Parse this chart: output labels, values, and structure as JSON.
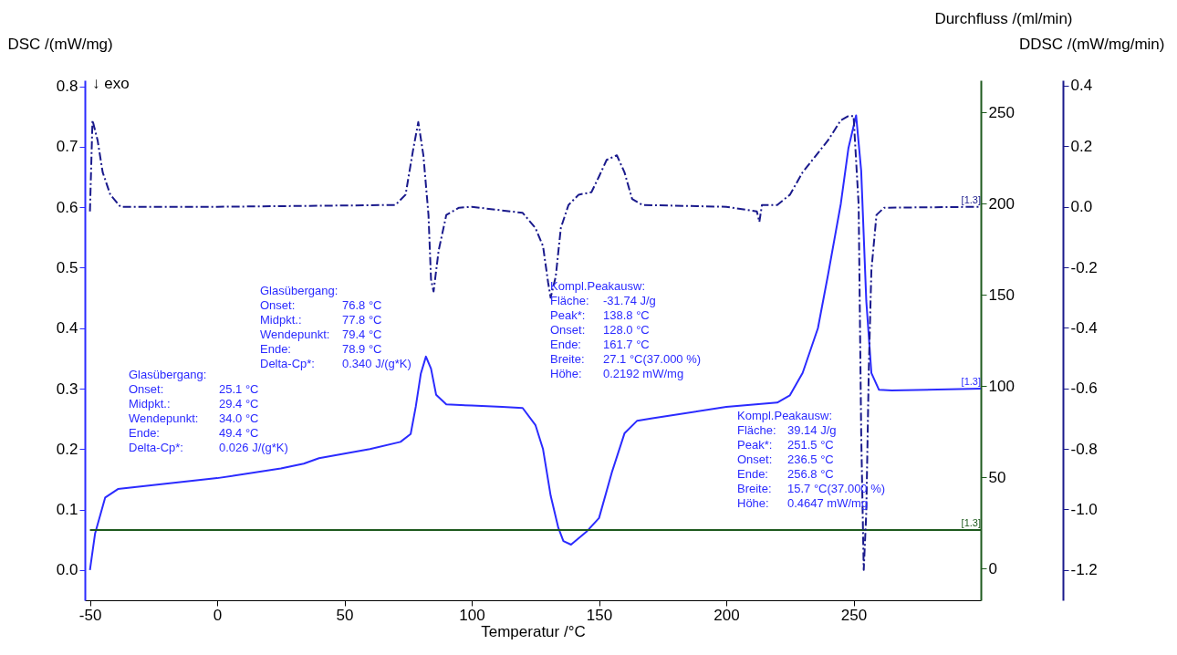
{
  "chart_data": {
    "type": "line",
    "xlabel": "Temperatur /°C",
    "ylabel": "DSC /(mW/mg)",
    "y2label": "Durchfluss /(ml/min)",
    "y3label": "DDSC /(mW/mg/min)",
    "xlim": [
      -52,
      300
    ],
    "xticks": [
      -50,
      0,
      50,
      100,
      150,
      200,
      250
    ],
    "ylim": [
      -0.05,
      0.81
    ],
    "yticks": [
      {
        "value": 0,
        "label": "0.0"
      },
      {
        "value": 0.1,
        "label": "0.1"
      },
      {
        "value": 0.2,
        "label": "0.2"
      },
      {
        "value": 0.3,
        "label": "0.3"
      },
      {
        "value": 0.4,
        "label": "0.4"
      },
      {
        "value": 0.5,
        "label": "0.5"
      },
      {
        "value": 0.6,
        "label": "0.6"
      },
      {
        "value": 0.7,
        "label": "0.7"
      },
      {
        "value": 0.8,
        "label": "0.8"
      }
    ],
    "y2lim": [
      -17.5,
      267.5
    ],
    "y2ticks": [
      0,
      50,
      100,
      150,
      200,
      250
    ],
    "y3lim": [
      -1.3,
      0.418
    ],
    "y3ticks": [
      {
        "value": -1.2,
        "label": "-1.2"
      },
      {
        "value": -1,
        "label": "-1.0"
      },
      {
        "value": -0.8,
        "label": "-0.8"
      },
      {
        "value": -0.6,
        "label": "-0.6"
      },
      {
        "value": -0.4,
        "label": "-0.4"
      },
      {
        "value": -0.2,
        "label": "-0.2"
      },
      {
        "value": 0,
        "label": "0.0"
      },
      {
        "value": 0.2,
        "label": "0.2"
      },
      {
        "value": 0.4,
        "label": "0.4"
      }
    ],
    "series": [
      {
        "color": "#2b2bff",
        "line_style": "solid",
        "axis": "y",
        "x": [
          -50,
          -48,
          -44,
          -39,
          0,
          25,
          34,
          40,
          60,
          72,
          76,
          78,
          80,
          82,
          84,
          86,
          90,
          100,
          112,
          120,
          125,
          128,
          131,
          134,
          136,
          139,
          145,
          150,
          155,
          160,
          165,
          171,
          200,
          220,
          225,
          230,
          236,
          240,
          245,
          248,
          251,
          253,
          255,
          257,
          260,
          265,
          300
        ],
        "values": [
          0.0,
          0.06,
          0.12,
          0.134,
          0.152,
          0.168,
          0.176,
          0.185,
          0.2,
          0.212,
          0.225,
          0.27,
          0.325,
          0.353,
          0.333,
          0.29,
          0.274,
          0.272,
          0.27,
          0.268,
          0.24,
          0.2,
          0.123,
          0.07,
          0.048,
          0.042,
          0.063,
          0.086,
          0.161,
          0.226,
          0.247,
          0.251,
          0.27,
          0.277,
          0.289,
          0.326,
          0.4,
          0.489,
          0.606,
          0.698,
          0.752,
          0.66,
          0.445,
          0.326,
          0.298,
          0.297,
          0.3
        ]
      },
      {
        "color": "#1e5a1e",
        "line_style": "solid",
        "axis": "y2",
        "x": [
          -50,
          0,
          50,
          100,
          150,
          200,
          250,
          300
        ],
        "values": [
          21,
          21,
          21,
          21,
          21,
          21,
          21,
          21
        ]
      },
      {
        "color": "#1a1a8c",
        "line_style": "dashed",
        "axis": "y3",
        "x": [
          -50,
          -49,
          -47,
          -45,
          -42,
          -38,
          0,
          70,
          74,
          77,
          79,
          81,
          83,
          84,
          85,
          87,
          90,
          95,
          100,
          120,
          125,
          128,
          130,
          131,
          133,
          135,
          138,
          142,
          147,
          150,
          153,
          157,
          160,
          163,
          167,
          200,
          212,
          213,
          214,
          220,
          225,
          230,
          240,
          245,
          248,
          250,
          252,
          253,
          254,
          255,
          256,
          257,
          259,
          262,
          300
        ],
        "values": [
          -0.015,
          0.286,
          0.22,
          0.114,
          0.04,
          0.0,
          0.0,
          0.006,
          0.04,
          0.19,
          0.28,
          0.17,
          -0.027,
          -0.24,
          -0.28,
          -0.144,
          -0.027,
          -0.003,
          0.0,
          -0.02,
          -0.07,
          -0.13,
          -0.25,
          -0.3,
          -0.23,
          -0.07,
          0.006,
          0.04,
          0.048,
          0.1,
          0.155,
          0.17,
          0.114,
          0.026,
          0.006,
          0.0,
          -0.015,
          -0.05,
          0.006,
          0.006,
          0.04,
          0.114,
          0.22,
          0.286,
          0.3,
          0.3,
          0.006,
          -0.75,
          -1.2,
          -1.01,
          -0.53,
          -0.21,
          -0.027,
          -0.003,
          0.0
        ]
      }
    ],
    "annotations": [
      "↓ exo",
      "Glasübergang:\nOnset:\t25.1 °C\nMidpkt.:\t29.4 °C\nWendepunkt:\t34.0 °C\nEnde:\t49.4 °C\nDelta-Cp*:\t 0.026 J/(g*K)",
      "Glasübergang:\nOnset:\t76.8 °C\nMidpkt.:\t77.8 °C\nWendepunkt:\t79.4 °C\nEnde:\t78.9 °C\nDelta-Cp*:\t 0.340 J/(g*K)",
      "Kompl.Peakausw:\nFläche:\t-31.74 J/g\nPeak*:\t138.8 °C\nOnset:\t128.0 °C\nEnde:\t161.7 °C\nBreite:\t  27.1 °C(37.000 %)\nHöhe:\t      0.2192 mW/mg",
      "Kompl.Peakausw:\nFläche:\t  39.14 J/g\nPeak*:\t251.5 °C\nOnset:\t236.5 °C\nEnde:\t256.8 °C\nBreite:\t  15.7 °C(37.000 %)\nHöhe:\t      0.4647 mW/mg",
      "[1.3]",
      "[1.3]",
      "[1.3]"
    ]
  }
}
